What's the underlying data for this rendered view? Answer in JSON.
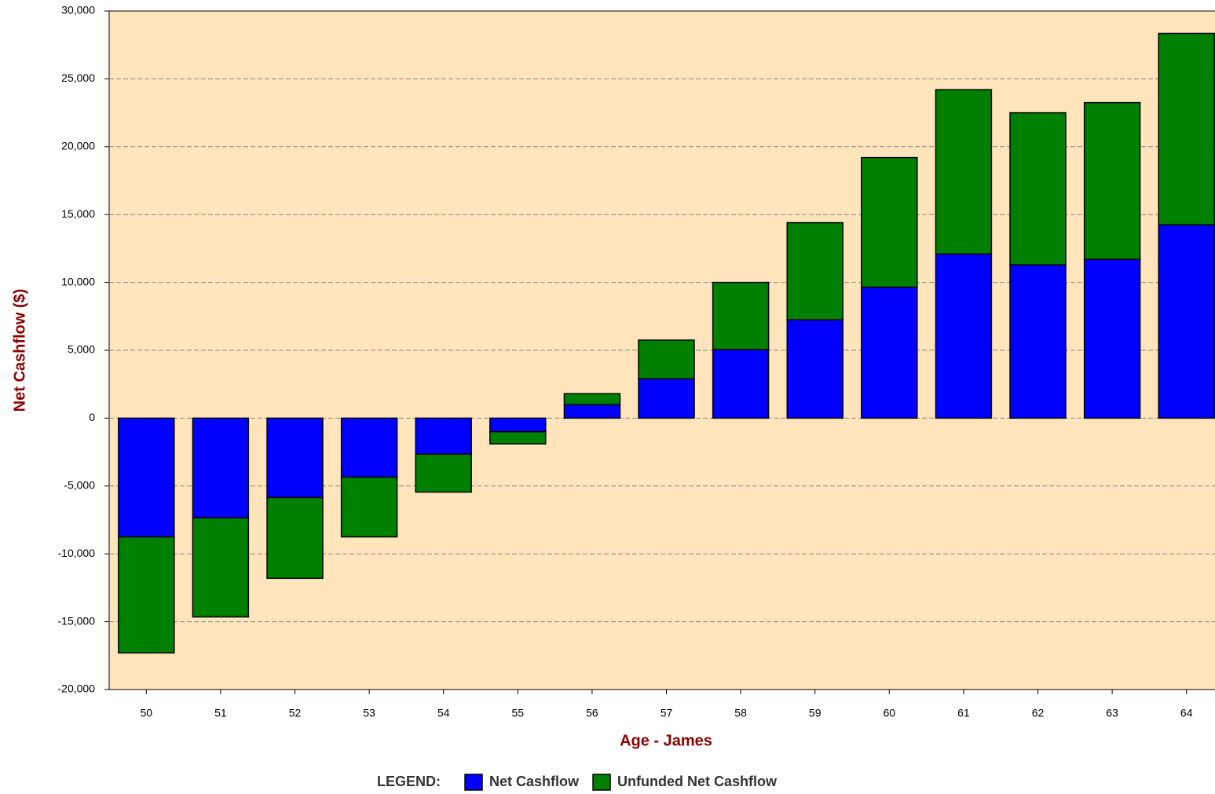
{
  "chart_data": {
    "type": "stacked_bar",
    "x_label": "Age - James",
    "y_label": "Net Cashflow ($)",
    "legend_title": "LEGEND:",
    "categories": [
      "50",
      "51",
      "52",
      "53",
      "54",
      "55",
      "56",
      "57",
      "58",
      "59",
      "60",
      "61",
      "62",
      "63",
      "64"
    ],
    "series": [
      {
        "name": "Net Cashflow",
        "color": "#0000ff",
        "values": [
          -8750,
          -7350,
          -5850,
          -4350,
          -2650,
          -1000,
          1000,
          2900,
          5050,
          7250,
          9650,
          12100,
          11300,
          11700,
          14250
        ]
      },
      {
        "name": "Unfunded Net Cashflow",
        "color": "#008000",
        "values": [
          -8550,
          -7300,
          -5950,
          -4400,
          -2800,
          -900,
          800,
          2850,
          4950,
          7150,
          9550,
          12100,
          11200,
          11550,
          14100
        ]
      }
    ],
    "ylim": [
      -20000,
      30000
    ],
    "yticks": [
      {
        "value": -20000,
        "label": "-20,000"
      },
      {
        "value": -15000,
        "label": "-15,000"
      },
      {
        "value": -10000,
        "label": "-10,000"
      },
      {
        "value": -5000,
        "label": "-5,000"
      },
      0,
      {
        "value": 5000,
        "label": "5,000"
      },
      {
        "value": 10000,
        "label": "10,000"
      },
      {
        "value": 15000,
        "label": "15,000"
      },
      {
        "value": 20000,
        "label": "20,000"
      },
      {
        "value": 25000,
        "label": "25,000"
      },
      {
        "value": 30000,
        "label": "30,000"
      }
    ],
    "grid": true,
    "legend": "bottom"
  }
}
